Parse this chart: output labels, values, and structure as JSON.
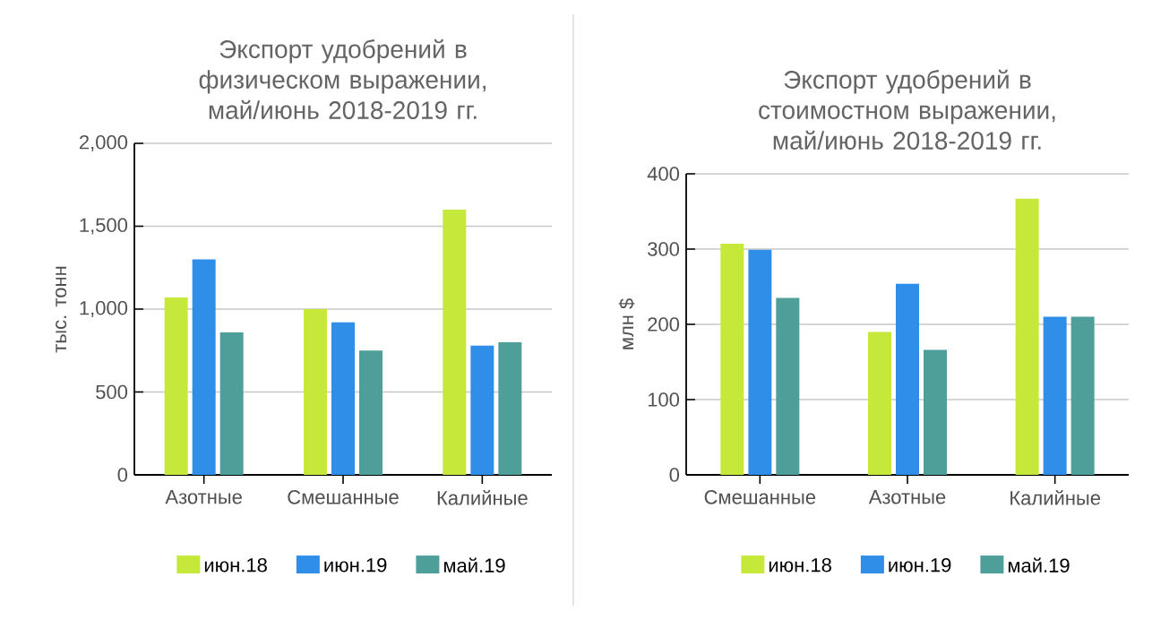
{
  "chart_data": [
    {
      "type": "bar",
      "title": "Экспорт удобрений в физическом выражении, май/июнь 2018-2019 гг.",
      "ylabel": "тыс. тонн",
      "categories": [
        "Азотные",
        "Смешанные",
        "Калийные"
      ],
      "series": [
        {
          "name": "июн.18",
          "color": "#c5e83a",
          "values": [
            1070,
            1000,
            1600
          ]
        },
        {
          "name": "июн.19",
          "color": "#2f8fe8",
          "values": [
            1300,
            920,
            780
          ]
        },
        {
          "name": "май.19",
          "color": "#4e9f9a",
          "values": [
            860,
            750,
            800
          ]
        }
      ],
      "ylim": [
        0,
        2000
      ],
      "yticks": [
        0,
        500,
        {
          "value": 1000,
          "label": "1,000"
        },
        {
          "value": 1500,
          "label": "1,500"
        },
        {
          "value": 2000,
          "label": "2,000"
        }
      ],
      "grid": "y",
      "legend": "bottom"
    },
    {
      "type": "bar",
      "title": "Экспорт удобрений в стоимостном выражении, май/июнь 2018-2019 гг.",
      "ylabel": "млн $",
      "categories": [
        "Смешанные",
        "Азотные",
        "Калийные"
      ],
      "series": [
        {
          "name": "июн.18",
          "color": "#c5e83a",
          "values": [
            307,
            190,
            367
          ]
        },
        {
          "name": "июн.19",
          "color": "#2f8fe8",
          "values": [
            299,
            254,
            210
          ]
        },
        {
          "name": "май.19",
          "color": "#4e9f9a",
          "values": [
            235,
            166,
            210
          ]
        }
      ],
      "ylim": [
        0,
        400
      ],
      "yticks": [
        0,
        100,
        200,
        300,
        400
      ],
      "grid": "y",
      "legend": "bottom"
    }
  ]
}
